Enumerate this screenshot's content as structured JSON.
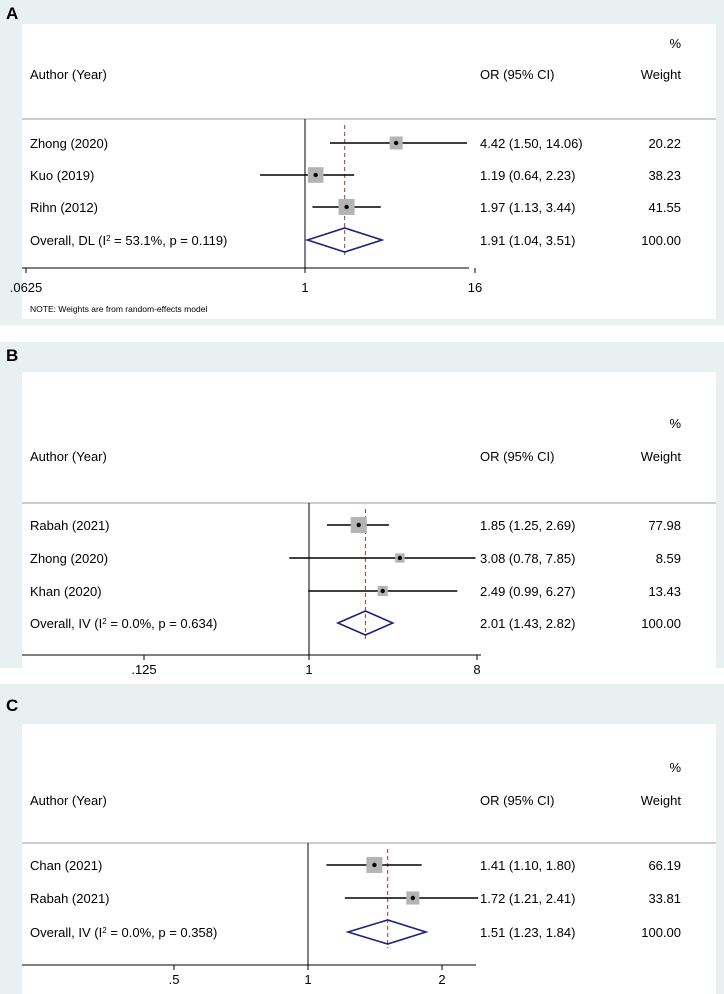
{
  "chart_data": [
    {
      "type": "forest",
      "panel_label": "A",
      "x_scale": "log",
      "xlim": [
        0.0625,
        16
      ],
      "ticks": [
        0.0625,
        1,
        16
      ],
      "tick_labels": [
        ".0625",
        "1",
        "16"
      ],
      "headers": {
        "study": "Author (Year)",
        "ci": "OR (95% CI)",
        "weight_pct": "%",
        "weight": "Weight"
      },
      "studies": [
        {
          "name": "Zhong (2020)",
          "or": 4.42,
          "lo": 1.5,
          "hi": 14.06,
          "ci_text": "4.42 (1.50, 14.06)",
          "weight": 20.22,
          "weight_text": "20.22"
        },
        {
          "name": "Kuo (2019)",
          "or": 1.19,
          "lo": 0.64,
          "hi": 2.23,
          "ci_text": "1.19 (0.64, 2.23)",
          "weight": 38.23,
          "weight_text": "38.23"
        },
        {
          "name": "Rihn (2012)",
          "or": 1.97,
          "lo": 1.13,
          "hi": 3.44,
          "ci_text": "1.97 (1.13, 3.44)",
          "weight": 41.55,
          "weight_text": "41.55"
        }
      ],
      "overall": {
        "prefix": "Overall, DL (I",
        "sup": "2",
        "suffix": " = 53.1%, p = 0.119)",
        "or": 1.91,
        "lo": 1.04,
        "hi": 3.51,
        "ci_text": "1.91 (1.04, 3.51)",
        "weight_text": "100.00"
      },
      "note": "NOTE: Weights are from random-effects model"
    },
    {
      "type": "forest",
      "panel_label": "B",
      "x_scale": "log",
      "xlim": [
        0.125,
        8
      ],
      "ticks": [
        0.125,
        1,
        8
      ],
      "tick_labels": [
        ".125",
        "1",
        "8"
      ],
      "headers": {
        "study": "Author (Year)",
        "ci": "OR (95% CI)",
        "weight_pct": "%",
        "weight": "Weight"
      },
      "studies": [
        {
          "name": "Rabah (2021)",
          "or": 1.85,
          "lo": 1.25,
          "hi": 2.69,
          "ci_text": "1.85 (1.25, 2.69)",
          "weight": 77.98,
          "weight_text": "77.98"
        },
        {
          "name": "Zhong (2020)",
          "or": 3.08,
          "lo": 0.78,
          "hi": 7.85,
          "ci_text": "3.08 (0.78, 7.85)",
          "weight": 8.59,
          "weight_text": "8.59"
        },
        {
          "name": "Khan (2020)",
          "or": 2.49,
          "lo": 0.99,
          "hi": 6.27,
          "ci_text": "2.49 (0.99, 6.27)",
          "weight": 13.43,
          "weight_text": "13.43"
        }
      ],
      "overall": {
        "prefix": "Overall, IV (I",
        "sup": "2",
        "suffix": " = 0.0%, p = 0.634)",
        "or": 2.01,
        "lo": 1.43,
        "hi": 2.82,
        "ci_text": "2.01 (1.43, 2.82)",
        "weight_text": "100.00"
      },
      "note": ""
    },
    {
      "type": "forest",
      "panel_label": "C",
      "x_scale": "log",
      "xlim": [
        0.5,
        2
      ],
      "ticks": [
        0.5,
        1,
        2
      ],
      "tick_labels": [
        ".5",
        "1",
        "2"
      ],
      "headers": {
        "study": "Author (Year)",
        "ci": "OR (95% CI)",
        "weight_pct": "%",
        "weight": "Weight"
      },
      "studies": [
        {
          "name": "Chan (2021)",
          "or": 1.41,
          "lo": 1.1,
          "hi": 1.8,
          "ci_text": "1.41 (1.10, 1.80)",
          "weight": 66.19,
          "weight_text": "66.19"
        },
        {
          "name": "Rabah (2021)",
          "or": 1.72,
          "lo": 1.21,
          "hi": 2.41,
          "ci_text": "1.72 (1.21, 2.41)",
          "weight": 33.81,
          "weight_text": "33.81"
        }
      ],
      "overall": {
        "prefix": "Overall, IV (I",
        "sup": "2",
        "suffix": " = 0.0%, p = 0.358)",
        "or": 1.51,
        "lo": 1.23,
        "hi": 1.84,
        "ci_text": "1.51 (1.23, 1.84)",
        "weight_text": "100.00"
      },
      "note": ""
    }
  ],
  "colors": {
    "panel_bg": "#e8f0f2",
    "diamond": "#1a237e",
    "ref_line": "#9b3b3b",
    "box": "#b4b4b4"
  }
}
